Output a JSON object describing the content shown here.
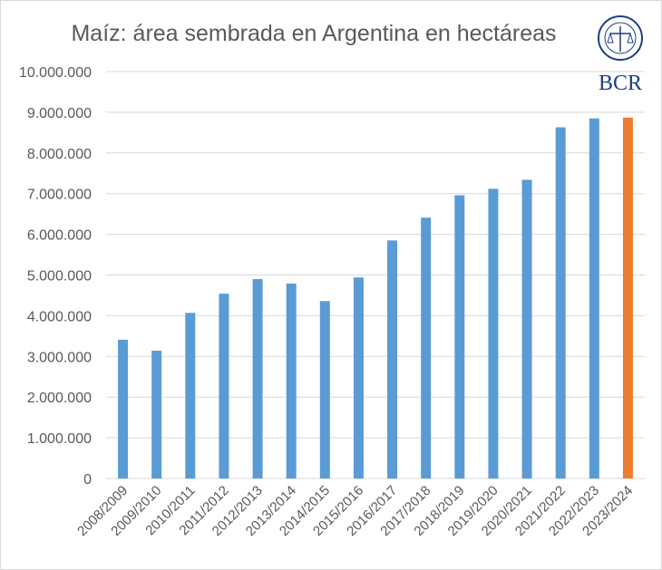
{
  "chart_data": {
    "type": "bar",
    "title": "Maíz: área sembrada en Argentina en hectáreas",
    "xlabel": "",
    "ylabel": "",
    "ylim": [
      0,
      10000000
    ],
    "yticks": [
      "0",
      "1.000.000",
      "2.000.000",
      "3.000.000",
      "4.000.000",
      "5.000.000",
      "6.000.000",
      "7.000.000",
      "8.000.000",
      "9.000.000",
      "10.000.000"
    ],
    "grid": true,
    "categories": [
      "2008/2009",
      "2009/2010",
      "2010/2011",
      "2011/2012",
      "2012/2013",
      "2013/2014",
      "2014/2015",
      "2015/2016",
      "2016/2017",
      "2017/2018",
      "2018/2019",
      "2019/2020",
      "2020/2021",
      "2021/2022",
      "2022/2023",
      "2023/2024"
    ],
    "values": [
      3410000,
      3140000,
      4070000,
      4540000,
      4900000,
      4790000,
      4360000,
      4940000,
      5850000,
      6410000,
      6960000,
      7120000,
      7340000,
      8630000,
      8850000,
      8870000
    ],
    "colors": {
      "bar": "#5b9bd5",
      "highlight": "#ed7d31",
      "highlight_category": "2023/2024",
      "grid": "#d9d9d9",
      "text": "#595959"
    }
  },
  "logo": {
    "text": "BCR",
    "seal_text": "BOLSA DE COMERCIO DE ROSARIO",
    "color": "#1f3c88"
  }
}
